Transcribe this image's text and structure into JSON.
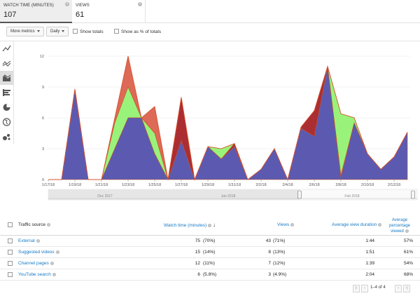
{
  "metrics": [
    {
      "label": "WATCH TIME (MINUTES)",
      "value": "107",
      "help": "?"
    },
    {
      "label": "VIEWS",
      "value": "61",
      "help": "?"
    }
  ],
  "toolbar": {
    "more_metrics": "More metrics",
    "interval": "Daily",
    "show_totals": "Show totals",
    "show_pct": "Show as % of totals"
  },
  "sidebar_icons": [
    "line-chart-icon",
    "multi-line-icon",
    "stacked-area-icon",
    "bar-chart-icon",
    "pie-chart-icon",
    "globe-map-icon",
    "bubble-chart-icon"
  ],
  "chart_data": {
    "type": "area",
    "stacked": true,
    "x": [
      "1/17/18",
      "1/18/18",
      "1/19/18",
      "1/20/18",
      "1/21/18",
      "1/22/18",
      "1/23/18",
      "1/24/18",
      "1/25/18",
      "1/26/18",
      "1/27/18",
      "1/28/18",
      "1/29/18",
      "1/30/18",
      "1/31/18",
      "2/1/18",
      "2/2/18",
      "2/3/18",
      "2/4/18",
      "2/5/18",
      "2/6/18",
      "2/7/18",
      "2/8/18",
      "2/9/18",
      "2/10/18",
      "2/11/18",
      "2/12/18",
      "2/13/18"
    ],
    "x_tick_labels": [
      "1/17/18",
      "1/19/18",
      "1/21/18",
      "1/23/18",
      "1/25/18",
      "1/27/18",
      "1/29/18",
      "1/31/18",
      "2/2/18",
      "2/4/18",
      "2/6/18",
      "2/8/18",
      "2/10/18",
      "2/12/18"
    ],
    "y_ticks": [
      "0",
      "3",
      "6",
      "9",
      "12"
    ],
    "ylim": [
      0,
      12
    ],
    "series": [
      {
        "name": "External",
        "color": "#5c5ab0",
        "values": [
          0,
          0,
          8.7,
          0,
          0,
          3,
          6,
          6,
          2.5,
          0,
          3.8,
          0,
          3.2,
          2,
          3.2,
          0,
          1,
          3,
          0,
          5,
          4.2,
          11,
          0.2,
          5.5,
          2.5,
          1,
          2.2,
          4.6
        ]
      },
      {
        "name": "Suggested videos",
        "color": "#ab2e32",
        "values": [
          0,
          0,
          0.1,
          0,
          0,
          0,
          0,
          0,
          0,
          0,
          4.2,
          0,
          0,
          0,
          0.3,
          0,
          0,
          0,
          0,
          0.1,
          2.5,
          0,
          0.2,
          0,
          0,
          0,
          0,
          0
        ]
      },
      {
        "name": "Channel pages",
        "color": "#99f37a",
        "values": [
          0,
          0,
          0,
          0,
          0,
          2.5,
          3,
          0,
          2,
          0,
          0,
          0,
          0,
          1,
          0,
          0,
          0,
          0,
          0,
          0,
          0,
          0,
          6,
          0.5,
          0,
          0,
          0,
          0
        ]
      },
      {
        "name": "YouTube search",
        "color": "#dd6a57",
        "values": [
          0,
          0,
          0,
          0,
          0,
          0.5,
          3,
          0,
          2.6,
          0,
          0,
          0,
          0,
          0,
          0,
          0,
          0,
          0,
          0,
          0,
          0,
          0,
          0,
          0,
          0,
          0,
          0,
          0
        ]
      }
    ],
    "navigator_labels": [
      "Dec 2017",
      "Jan 2018",
      "Feb 2018"
    ],
    "grid": true
  },
  "table": {
    "headers": {
      "source": "Traffic source",
      "watch_time": "Watch time (minutes)",
      "views": "Views",
      "avg_duration": "Average view duration",
      "avg_pct": "Average percentage viewed"
    },
    "rows": [
      {
        "source": "External",
        "watch_time": "75",
        "watch_pct": "(70%)",
        "views": "43",
        "views_pct": "(71%)",
        "avg_duration": "1:44",
        "avg_pct": "57%"
      },
      {
        "source": "Suggested videos",
        "watch_time": "15",
        "watch_pct": "(14%)",
        "views": "8",
        "views_pct": "(13%)",
        "avg_duration": "1:51",
        "avg_pct": "61%"
      },
      {
        "source": "Channel pages",
        "watch_time": "12",
        "watch_pct": "(11%)",
        "views": "7",
        "views_pct": "(12%)",
        "avg_duration": "1:39",
        "avg_pct": "54%"
      },
      {
        "source": "YouTube search",
        "watch_time": "6",
        "watch_pct": "(5.8%)",
        "views": "3",
        "views_pct": "(4.9%)",
        "avg_duration": "2:04",
        "avg_pct": "68%"
      }
    ]
  },
  "pager": {
    "range": "1–4 of 4"
  }
}
